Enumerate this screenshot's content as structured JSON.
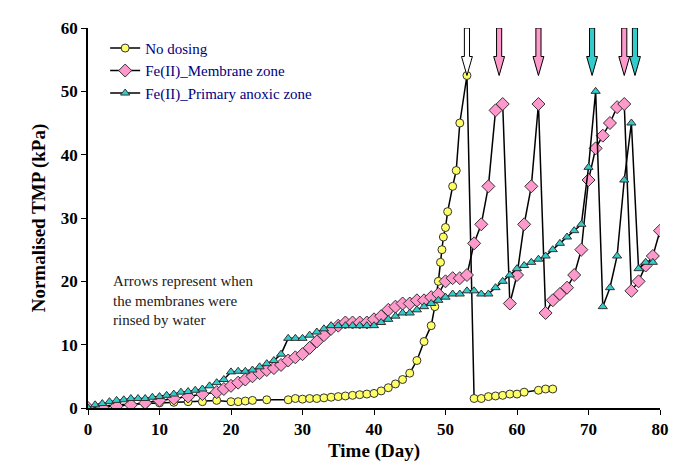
{
  "chart_data": {
    "type": "line",
    "x_label": "Time (Day)",
    "y_label": "Normalised TMP (kPa)",
    "xlim": [
      0,
      80
    ],
    "xticks": [
      0,
      10,
      20,
      30,
      40,
      50,
      60,
      70,
      80
    ],
    "ylim": [
      0,
      60
    ],
    "yticks": [
      0,
      10,
      20,
      30,
      40,
      50,
      60
    ],
    "grid": false,
    "legend": "upper left",
    "series": [
      {
        "name": "No dosing",
        "color": "#ffff66",
        "marker": "circle",
        "x": [
          0,
          2,
          4,
          6,
          8,
          10,
          12,
          14,
          16,
          18,
          20,
          21,
          22,
          23,
          25,
          28,
          29,
          30,
          31,
          32,
          33,
          34,
          35,
          36,
          37,
          38,
          39,
          40,
          41,
          42,
          43,
          44,
          45,
          46,
          47,
          48,
          48.5,
          49,
          49.3,
          49.5,
          49.7,
          50,
          50.3,
          51,
          51.5,
          52,
          53,
          54,
          55,
          56,
          57,
          58,
          59,
          60,
          61,
          63,
          64,
          65
        ],
        "values": [
          0,
          0.3,
          0.5,
          0.6,
          0.7,
          0.8,
          0.9,
          1.0,
          1.0,
          1.2,
          1.0,
          1.0,
          1.1,
          1.2,
          1.3,
          1.3,
          1.5,
          1.4,
          1.5,
          1.5,
          1.6,
          1.7,
          1.8,
          1.9,
          2.0,
          2.1,
          2.2,
          2.3,
          2.7,
          3.2,
          3.8,
          4.5,
          5.5,
          7.5,
          10.5,
          13,
          16,
          20,
          23,
          25,
          27,
          28.5,
          31,
          35,
          37.5,
          45,
          52.5,
          1.5,
          1.5,
          1.8,
          1.9,
          2.0,
          2.2,
          2.2,
          2.5,
          2.8,
          3.0,
          3.0
        ]
      },
      {
        "name": "Fe(II)_Membrane zone",
        "color": "#ff99cc",
        "marker": "diamond",
        "x": [
          0,
          2,
          4,
          6,
          8,
          10,
          12,
          14,
          16,
          18,
          19,
          20,
          21,
          22,
          23,
          24,
          25,
          26,
          27,
          28,
          29,
          30,
          31,
          32,
          33,
          34,
          35,
          36,
          37,
          38,
          39,
          40,
          41,
          42,
          43,
          44,
          45,
          46,
          47,
          48,
          49,
          50,
          51,
          52,
          53,
          54,
          55,
          56,
          57,
          58,
          59,
          60,
          61,
          62,
          63,
          64,
          65,
          66,
          67,
          68,
          69,
          70,
          71,
          72,
          73,
          74,
          75,
          76,
          77,
          78,
          79,
          80
        ],
        "values": [
          0,
          0.1,
          0.3,
          0.5,
          0.8,
          1.2,
          1.5,
          1.8,
          2.2,
          2.5,
          3,
          3.5,
          4,
          4.5,
          5,
          5.5,
          6,
          6.3,
          6.8,
          7.5,
          8,
          8.5,
          9.5,
          10.5,
          11.5,
          12.5,
          13,
          13.5,
          13.5,
          13.5,
          13.5,
          14,
          14.5,
          15.5,
          16,
          16.5,
          16.5,
          17,
          17,
          17.5,
          18,
          20,
          20.5,
          20.5,
          21,
          26,
          29,
          35,
          47,
          48,
          16.5,
          21,
          29,
          35,
          48,
          15,
          17,
          18,
          19,
          21,
          25,
          36,
          41,
          43,
          45,
          47.5,
          48,
          18.5,
          20,
          22.5,
          24,
          28
        ]
      },
      {
        "name": "Fe(II)_Primary anoxic zone",
        "color": "#33cccc",
        "marker": "triangle-up",
        "x": [
          0,
          1,
          2,
          3,
          4,
          5,
          6,
          7,
          8,
          9,
          10,
          11,
          12,
          13,
          14,
          15,
          16,
          17,
          18,
          19,
          20,
          21,
          22,
          23,
          24,
          25,
          26,
          27,
          28,
          29,
          30,
          31,
          32,
          33,
          34,
          35,
          36,
          37,
          38,
          39,
          40,
          41,
          42,
          43,
          44,
          45,
          46,
          47,
          48,
          49,
          50,
          51,
          52,
          53,
          54,
          55,
          56,
          57,
          58,
          59,
          60,
          61,
          62,
          63,
          64,
          65,
          66,
          67,
          68,
          69,
          70,
          71,
          72,
          73,
          74,
          75,
          76,
          77,
          78,
          79
        ],
        "values": [
          0,
          0.5,
          0.7,
          1,
          1.2,
          1.3,
          1.5,
          1.5,
          1.5,
          1.7,
          1.8,
          2,
          2.2,
          2.5,
          2.6,
          2.8,
          3,
          3.5,
          4,
          4.5,
          5.7,
          5.8,
          5.8,
          6,
          6.5,
          7,
          7.5,
          8.5,
          11,
          11,
          11,
          11.5,
          12,
          12.5,
          13,
          13,
          13,
          13,
          13,
          13,
          13,
          13.5,
          14,
          14.5,
          15,
          15,
          15.5,
          16,
          16.5,
          17,
          17.5,
          18,
          18,
          18.5,
          18.5,
          18,
          18,
          19,
          20,
          21,
          22,
          22.5,
          23,
          23.5,
          24,
          25,
          26,
          27,
          28,
          29,
          38,
          50,
          16,
          19,
          24,
          36,
          45,
          22,
          23,
          23
        ]
      }
    ],
    "rinse_events": [
      {
        "day": 53,
        "color": "#ffffff"
      },
      {
        "day": 57.5,
        "color": "#ff99cc"
      },
      {
        "day": 63,
        "color": "#ff99cc"
      },
      {
        "day": 70.5,
        "color": "#33cccc"
      },
      {
        "day": 75,
        "color": "#ff99cc"
      },
      {
        "day": 76.5,
        "color": "#33cccc"
      }
    ],
    "annotation": "Arrows represent when\nthe membranes were\nrinsed by water"
  }
}
